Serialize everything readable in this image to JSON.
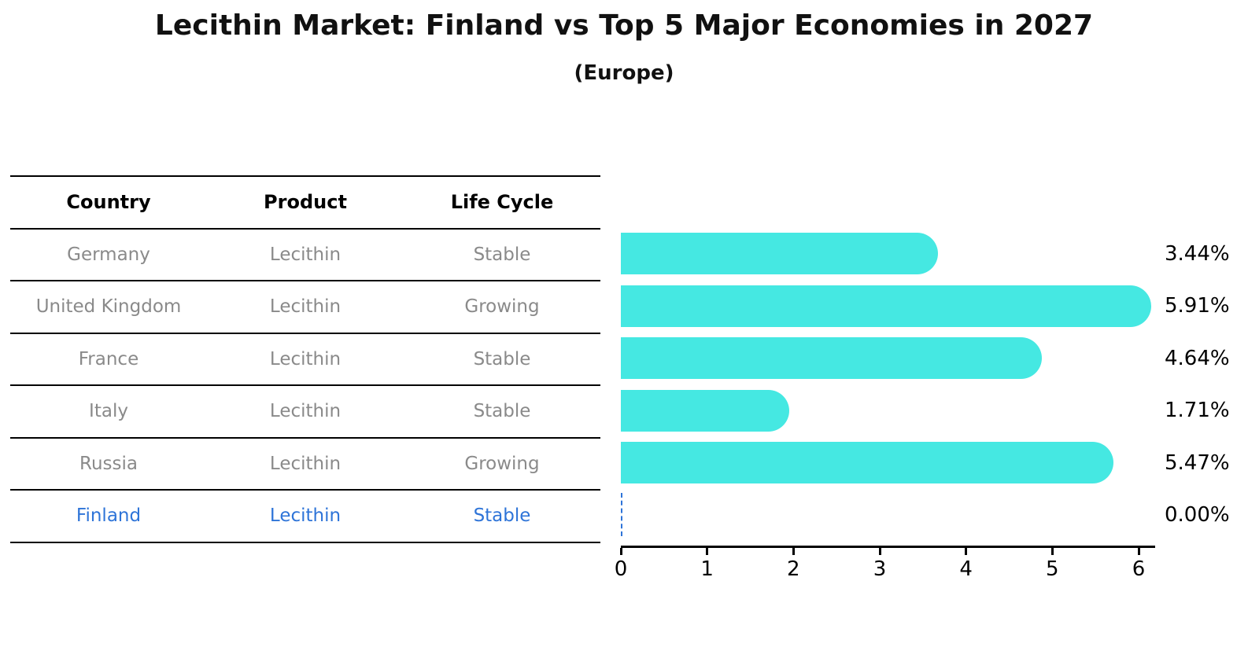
{
  "chart_data": {
    "type": "bar",
    "orientation": "horizontal",
    "title": "Lecithin Market: Finland vs Top 5 Major Economies in 2027",
    "subtitle": "(Europe)",
    "categories": [
      "Germany",
      "United Kingdom",
      "France",
      "Italy",
      "Russia",
      "Finland"
    ],
    "values": [
      3.44,
      5.91,
      4.64,
      1.71,
      5.47,
      0.0
    ],
    "value_labels": [
      "3.44%",
      "5.91%",
      "4.64%",
      "1.71%",
      "5.47%",
      "0.00%"
    ],
    "highlight_category": "Finland",
    "xlabel": "",
    "ylabel": "",
    "xlim": [
      0,
      6.19
    ],
    "xticks": [
      0,
      1,
      2,
      3,
      4,
      5,
      6
    ],
    "grid": false,
    "legend": false
  },
  "table": {
    "headers": [
      "Country",
      "Product",
      "Life Cycle"
    ],
    "rows": [
      {
        "country": "Germany",
        "product": "Lecithin",
        "life_cycle": "Stable",
        "highlighted": false
      },
      {
        "country": "United Kingdom",
        "product": "Lecithin",
        "life_cycle": "Growing",
        "highlighted": false
      },
      {
        "country": "France",
        "product": "Lecithin",
        "life_cycle": "Stable",
        "highlighted": false
      },
      {
        "country": "Italy",
        "product": "Lecithin",
        "life_cycle": "Stable",
        "highlighted": false
      },
      {
        "country": "Russia",
        "product": "Lecithin",
        "life_cycle": "Growing",
        "highlighted": false
      },
      {
        "country": "Finland",
        "product": "Lecithin",
        "life_cycle": "Stable",
        "highlighted": true
      }
    ]
  },
  "colors": {
    "bar": "#45e8e2",
    "highlight_text": "#2e74d8",
    "zero_marker": "#2e74d8",
    "table_text": "#8a8a8a",
    "header_text": "#000000",
    "axis": "#000000"
  }
}
